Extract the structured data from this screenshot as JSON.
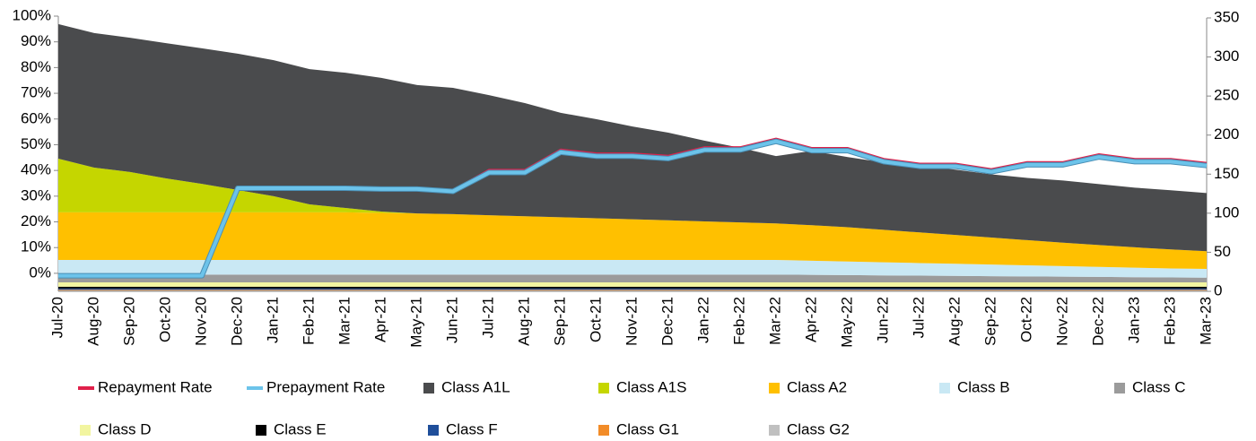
{
  "chart_data": {
    "type": "stacked_area_line",
    "categories": [
      "Jul-20",
      "Aug-20",
      "Sep-20",
      "Oct-20",
      "Nov-20",
      "Dec-20",
      "Jan-21",
      "Feb-21",
      "Mar-21",
      "Apr-21",
      "May-21",
      "Jun-21",
      "Jul-21",
      "Aug-21",
      "Sep-21",
      "Oct-21",
      "Nov-21",
      "Dec-21",
      "Jan-22",
      "Feb-22",
      "Mar-22",
      "Apr-22",
      "May-22",
      "Jun-22",
      "Jul-22",
      "Aug-22",
      "Sep-22",
      "Oct-22",
      "Nov-22",
      "Dec-22",
      "Jan-23",
      "Feb-23",
      "Mar-23"
    ],
    "ylim": [
      -7,
      100
    ],
    "yticks": [
      {
        "value": 0,
        "label": "0%"
      },
      {
        "value": 10,
        "label": "10%"
      },
      {
        "value": 20,
        "label": "20%"
      },
      {
        "value": 30,
        "label": "30%"
      },
      {
        "value": 40,
        "label": "40%"
      },
      {
        "value": 50,
        "label": "50%"
      },
      {
        "value": 60,
        "label": "60%"
      },
      {
        "value": 70,
        "label": "70%"
      },
      {
        "value": 80,
        "label": "80%"
      },
      {
        "value": 90,
        "label": "90%"
      },
      {
        "value": 100,
        "label": "100%"
      }
    ],
    "y2lim": [
      0,
      350
    ],
    "y2ticks": [
      0,
      50,
      100,
      150,
      200,
      250,
      300,
      350
    ],
    "series": [
      {
        "name": "Repayment Rate",
        "kind": "line",
        "axis": "y2",
        "color": "#e0204a",
        "values": [
          21,
          21,
          21,
          21,
          21,
          133,
          133,
          133,
          133,
          132,
          132,
          129,
          155,
          155,
          181,
          176,
          176,
          173,
          184,
          184,
          195,
          183,
          183,
          169,
          163,
          163,
          156,
          165,
          165,
          175,
          169,
          169,
          164
        ]
      },
      {
        "name": "Prepayment Rate",
        "kind": "line",
        "axis": "y2",
        "color": "#6cc3ea",
        "values": [
          20,
          20,
          20,
          20,
          20,
          132,
          132,
          132,
          132,
          131,
          131,
          128,
          152,
          152,
          178,
          173,
          173,
          170,
          181,
          181,
          192,
          180,
          180,
          166,
          160,
          160,
          153,
          162,
          162,
          172,
          166,
          166,
          161
        ]
      },
      {
        "name": "Class A1L",
        "kind": "area",
        "color": "#4a4b4d",
        "values": [
          52.3,
          52.3,
          52.2,
          52.6,
          52.7,
          53.0,
          52.9,
          52.6,
          52.6,
          52.0,
          49.9,
          49.1,
          46.7,
          44.0,
          40.6,
          38.5,
          36.1,
          34.1,
          31.4,
          29.0,
          26.2,
          28.9,
          27.3,
          26.2,
          25.8,
          25.4,
          24.6,
          24.2,
          24.2,
          23.7,
          23.2,
          23.0,
          22.6
        ]
      },
      {
        "name": "Class A1S",
        "kind": "area",
        "color": "#c5d600",
        "values": [
          20.9,
          17.4,
          15.7,
          13.2,
          11.1,
          8.7,
          6.3,
          3.1,
          1.7,
          0.5,
          0,
          0,
          0,
          0,
          0,
          0,
          0,
          0,
          0,
          0,
          0,
          0,
          0,
          0,
          0,
          0,
          0,
          0,
          0,
          0,
          0,
          0,
          0
        ]
      },
      {
        "name": "Class A2",
        "kind": "area",
        "color": "#ffc000",
        "values": [
          18.5,
          18.5,
          18.5,
          18.5,
          18.5,
          18.5,
          18.5,
          18.5,
          18.5,
          18.3,
          18.1,
          17.8,
          17.4,
          17.0,
          16.6,
          16.2,
          15.8,
          15.4,
          15.0,
          14.6,
          14.2,
          13.8,
          13.3,
          12.6,
          11.9,
          11.2,
          10.5,
          9.8,
          9.1,
          8.5,
          7.9,
          7.4,
          6.9
        ]
      },
      {
        "name": "Class B",
        "kind": "area",
        "color": "#c9e8f4",
        "values": [
          5.7,
          5.7,
          5.7,
          5.7,
          5.7,
          5.7,
          5.7,
          5.7,
          5.7,
          5.7,
          5.7,
          5.7,
          5.7,
          5.7,
          5.7,
          5.7,
          5.7,
          5.7,
          5.7,
          5.7,
          5.7,
          5.5,
          5.3,
          5.1,
          4.9,
          4.7,
          4.5,
          4.3,
          4.1,
          3.9,
          3.7,
          3.5,
          3.4
        ]
      },
      {
        "name": "Class C",
        "kind": "area",
        "color": "#9b9b9b",
        "values": [
          3.0,
          3.0,
          3.0,
          3.0,
          3.0,
          3.0,
          3.0,
          3.0,
          3.0,
          3.0,
          3.0,
          3.0,
          3.0,
          3.0,
          3.0,
          3.0,
          3.0,
          3.0,
          3.0,
          3.0,
          3.0,
          2.9,
          2.8,
          2.7,
          2.6,
          2.5,
          2.4,
          2.3,
          2.2,
          2.1,
          2.0,
          1.9,
          1.8
        ]
      },
      {
        "name": "Class D",
        "kind": "area",
        "color": "#f2f5a0",
        "values": [
          1.7,
          1.7,
          1.7,
          1.7,
          1.7,
          1.7,
          1.7,
          1.7,
          1.7,
          1.7,
          1.7,
          1.7,
          1.7,
          1.7,
          1.7,
          1.7,
          1.7,
          1.7,
          1.7,
          1.7,
          1.7,
          1.7,
          1.7,
          1.7,
          1.7,
          1.7,
          1.7,
          1.7,
          1.7,
          1.7,
          1.7,
          1.7,
          1.7
        ]
      },
      {
        "name": "Class E",
        "kind": "area",
        "color": "#000000",
        "values": [
          0.7,
          0.7,
          0.7,
          0.7,
          0.7,
          0.7,
          0.7,
          0.7,
          0.7,
          0.7,
          0.7,
          0.7,
          0.7,
          0.7,
          0.7,
          0.7,
          0.7,
          0.7,
          0.7,
          0.7,
          0.7,
          0.7,
          0.7,
          0.7,
          0.7,
          0.7,
          0.7,
          0.7,
          0.7,
          0.7,
          0.7,
          0.7,
          0.7
        ]
      },
      {
        "name": "Class F",
        "kind": "area",
        "color": "#1f4e9a",
        "values": [
          0.5,
          0.5,
          0.5,
          0.5,
          0.5,
          0.5,
          0.5,
          0.5,
          0.5,
          0.5,
          0.5,
          0.5,
          0.5,
          0.5,
          0.5,
          0.5,
          0.5,
          0.5,
          0.5,
          0.5,
          0.5,
          0.5,
          0.5,
          0.5,
          0.5,
          0.5,
          0.5,
          0.5,
          0.5,
          0.5,
          0.5,
          0.5,
          0.5
        ]
      },
      {
        "name": "Class G1",
        "kind": "area",
        "color": "#f28c28",
        "values": [
          0.3,
          0.3,
          0.3,
          0.3,
          0.3,
          0.3,
          0.3,
          0.3,
          0.3,
          0.3,
          0.3,
          0.3,
          0.3,
          0.3,
          0.3,
          0.3,
          0.3,
          0.3,
          0.3,
          0.3,
          0.3,
          0.3,
          0.3,
          0.3,
          0.3,
          0.3,
          0.3,
          0.3,
          0.3,
          0.3,
          0.3,
          0.3,
          0.3
        ]
      },
      {
        "name": "Class G2",
        "kind": "area",
        "color": "#c0c0c0",
        "values": [
          0.3,
          0.3,
          0.3,
          0.3,
          0.3,
          0.3,
          0.3,
          0.3,
          0.3,
          0.3,
          0.3,
          0.3,
          0.3,
          0.3,
          0.3,
          0.3,
          0.3,
          0.3,
          0.3,
          0.3,
          0.3,
          0.3,
          0.3,
          0.3,
          0.3,
          0.3,
          0.3,
          0.3,
          0.3,
          0.3,
          0.3,
          0.3,
          0.3
        ]
      }
    ]
  }
}
